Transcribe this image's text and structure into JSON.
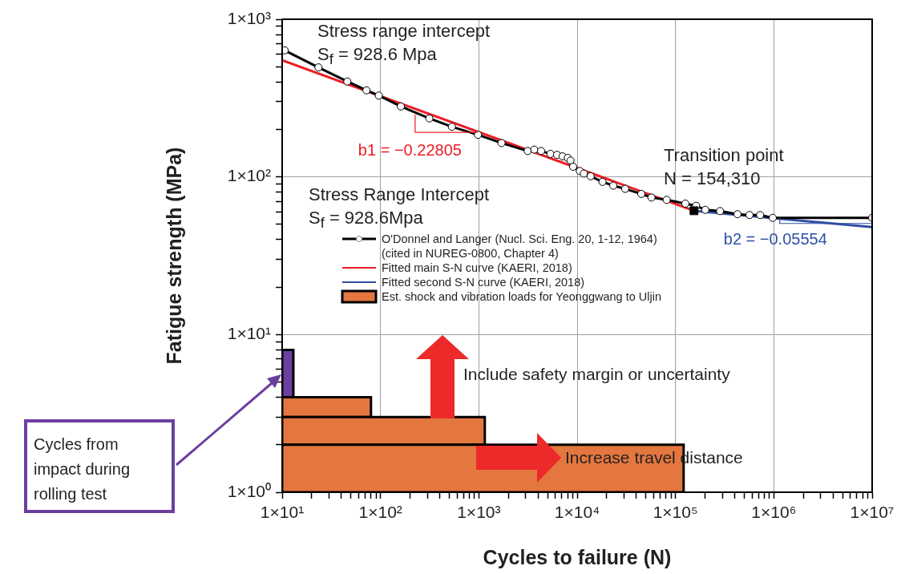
{
  "chart_data": {
    "type": "line",
    "xlabel": "Cycles to failure (N)",
    "ylabel": "Fatigue strength (MPa)",
    "log": "xy",
    "grid": true,
    "legend": "center",
    "xlim": [
      10,
      10000000
    ],
    "ylim": [
      1,
      1000
    ],
    "xticks": [
      {
        "value": 10,
        "label": "1×10¹"
      },
      {
        "value": 20,
        "label": null
      },
      {
        "value": 30,
        "label": null
      },
      {
        "value": 40,
        "label": null
      },
      {
        "value": 50,
        "label": null
      },
      {
        "value": 60,
        "label": null
      },
      {
        "value": 70,
        "label": null
      },
      {
        "value": 80,
        "label": null
      },
      {
        "value": 90,
        "label": null
      },
      {
        "value": 100,
        "label": "1×10²"
      },
      {
        "value": 200,
        "label": null
      },
      {
        "value": 300,
        "label": null
      },
      {
        "value": 400,
        "label": null
      },
      {
        "value": 500,
        "label": null
      },
      {
        "value": 600,
        "label": null
      },
      {
        "value": 700,
        "label": null
      },
      {
        "value": 800,
        "label": null
      },
      {
        "value": 900,
        "label": null
      },
      {
        "value": 1000,
        "label": "1×10³"
      },
      {
        "value": 2000,
        "label": null
      },
      {
        "value": 3000,
        "label": null
      },
      {
        "value": 4000,
        "label": null
      },
      {
        "value": 5000,
        "label": null
      },
      {
        "value": 6000,
        "label": null
      },
      {
        "value": 7000,
        "label": null
      },
      {
        "value": 8000,
        "label": null
      },
      {
        "value": 9000,
        "label": null
      },
      {
        "value": 10000,
        "label": "1×10⁴"
      },
      {
        "value": 20000,
        "label": null
      },
      {
        "value": 30000,
        "label": null
      },
      {
        "value": 40000,
        "label": null
      },
      {
        "value": 50000,
        "label": null
      },
      {
        "value": 60000,
        "label": null
      },
      {
        "value": 70000,
        "label": null
      },
      {
        "value": 80000,
        "label": null
      },
      {
        "value": 90000,
        "label": null
      },
      {
        "value": 100000,
        "label": "1×10⁵"
      },
      {
        "value": 200000,
        "label": null
      },
      {
        "value": 300000,
        "label": null
      },
      {
        "value": 400000,
        "label": null
      },
      {
        "value": 500000,
        "label": null
      },
      {
        "value": 600000,
        "label": null
      },
      {
        "value": 700000,
        "label": null
      },
      {
        "value": 800000,
        "label": null
      },
      {
        "value": 900000,
        "label": null
      },
      {
        "value": 1000000,
        "label": "1×10⁶"
      },
      {
        "value": 2000000,
        "label": null
      },
      {
        "value": 3000000,
        "label": null
      },
      {
        "value": 4000000,
        "label": null
      },
      {
        "value": 5000000,
        "label": null
      },
      {
        "value": 6000000,
        "label": null
      },
      {
        "value": 7000000,
        "label": null
      },
      {
        "value": 8000000,
        "label": null
      },
      {
        "value": 9000000,
        "label": null
      },
      {
        "value": 10000000,
        "label": "1×10⁷"
      }
    ],
    "yticks": [
      {
        "value": 1,
        "label": "1×10⁰"
      },
      {
        "value": 2,
        "label": null
      },
      {
        "value": 3,
        "label": null
      },
      {
        "value": 4,
        "label": null
      },
      {
        "value": 5,
        "label": null
      },
      {
        "value": 6,
        "label": null
      },
      {
        "value": 7,
        "label": null
      },
      {
        "value": 8,
        "label": null
      },
      {
        "value": 9,
        "label": null
      },
      {
        "value": 10,
        "label": "1×10¹"
      },
      {
        "value": 20,
        "label": null
      },
      {
        "value": 30,
        "label": null
      },
      {
        "value": 40,
        "label": null
      },
      {
        "value": 50,
        "label": null
      },
      {
        "value": 60,
        "label": null
      },
      {
        "value": 70,
        "label": null
      },
      {
        "value": 80,
        "label": null
      },
      {
        "value": 90,
        "label": null
      },
      {
        "value": 100,
        "label": "1×10²"
      },
      {
        "value": 200,
        "label": null
      },
      {
        "value": 300,
        "label": null
      },
      {
        "value": 400,
        "label": null
      },
      {
        "value": 500,
        "label": null
      },
      {
        "value": 600,
        "label": null
      },
      {
        "value": 700,
        "label": null
      },
      {
        "value": 800,
        "label": null
      },
      {
        "value": 900,
        "label": null
      },
      {
        "value": 1000,
        "label": "1×10³"
      }
    ],
    "annotations": [
      "Stress range intercept",
      "S$_{f}$ = 928.6 Mpa",
      {
        "text": "b1 = −0.22805",
        "x": 225,
        "y": 248
      },
      "Transition point",
      "N = 154,310",
      "Stress Range Intercept",
      "S$_{f}$ = 928.6Mpa",
      {
        "text": "b2 = −0.05554",
        "x": 1150000,
        "y": 55
      },
      "Include safety margin or uncertainty",
      "Increase travel distance",
      "Cycles from impact during rolling test"
    ],
    "series": [
      {
        "name": "O'Donnel and Langer (Nucl. Sci. Eng. 20, 1-12, 1964)\n(cited in NUREG-0800, Chapter 4)",
        "color": "#000000",
        "marker": "circle",
        "x": [
          10.6,
          23.4,
          46,
          72,
          96,
          161,
          314,
          532,
          980,
          1700,
          3140,
          3670,
          4300,
          5350,
          6250,
          7100,
          8030,
          8560,
          9100,
          10640,
          11700,
          13700,
          18100,
          23300,
          30800,
          44900,
          57000,
          81300,
          126000,
          162000,
          201000,
          284000,
          427000,
          566000,
          726000,
          975000,
          10000000
        ],
        "values": [
          635,
          495,
          403,
          354,
          328,
          280,
          235,
          208,
          185,
          164,
          146,
          149,
          146,
          140,
          138,
          135,
          132,
          127,
          116,
          109,
          105,
          101,
          93,
          88,
          84,
          78,
          74,
          71.5,
          67.7,
          65.6,
          61.8,
          60.7,
          58,
          57.3,
          57.3,
          55,
          55
        ]
      },
      {
        "name": "Fitted main S-N curve (KAERI, 2018)",
        "color": "#ed1c24",
        "marker": "none",
        "x": [
          10,
          154310
        ],
        "values": [
          549,
          61
        ]
      },
      {
        "name": "Fitted second S-N curve (KAERI, 2018)",
        "color": "#2e4fa3",
        "marker": "none",
        "x": [
          154310,
          10000000
        ],
        "values": [
          61,
          48
        ]
      },
      {
        "type": "scatter",
        "color": "#000000",
        "marker": "square",
        "x": [
          154310
        ],
        "values": [
          61
        ]
      },
      {
        "type": "area",
        "name": "Est. shock and vibration loads for Yeonggwang to Uljin",
        "color": "#e3773f",
        "x": [
          10,
          10,
          121000,
          121000,
          10
        ],
        "values": [
          1,
          2,
          2,
          1,
          1
        ]
      },
      {
        "type": "area",
        "color": "#e3773f",
        "x": [
          10,
          10,
          1150,
          1150,
          10
        ],
        "values": [
          2,
          3,
          3,
          2,
          2
        ]
      },
      {
        "type": "area",
        "color": "#e3773f",
        "x": [
          10,
          10,
          80,
          80,
          10
        ],
        "values": [
          3,
          4,
          4,
          3,
          3
        ]
      },
      {
        "type": "area",
        "color": "#6b3fa0",
        "x": [
          10,
          10,
          13,
          13,
          10
        ],
        "values": [
          4,
          8,
          8,
          4,
          4
        ]
      }
    ]
  }
}
